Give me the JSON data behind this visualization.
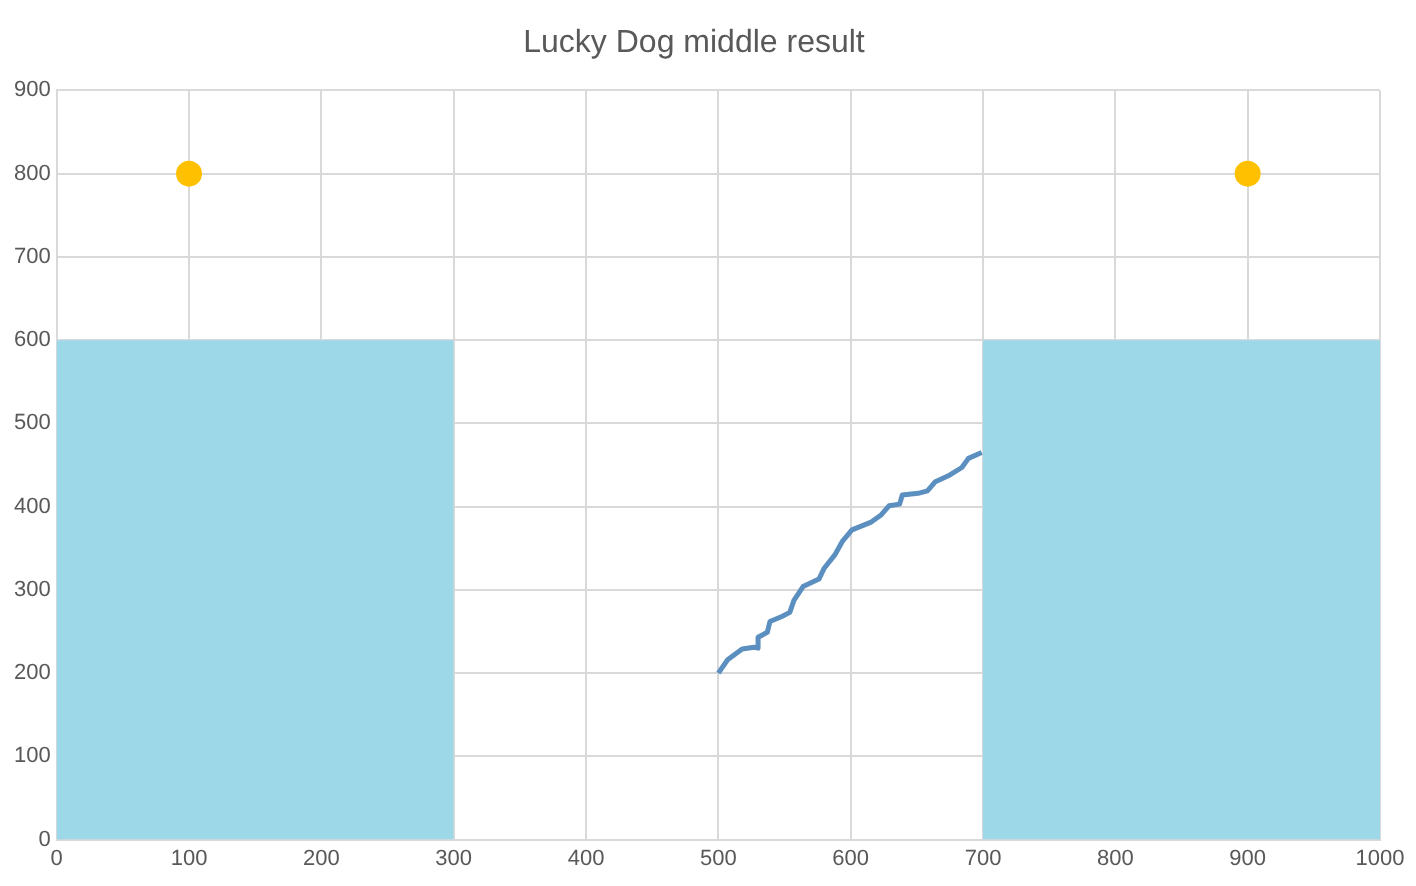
{
  "chart_data": {
    "type": "scatter",
    "title": "Lucky Dog middle result",
    "xlim": [
      0,
      1000
    ],
    "xticks": [
      0,
      100,
      200,
      300,
      400,
      500,
      600,
      700,
      800,
      900,
      1000
    ],
    "ylim": [
      0,
      900
    ],
    "yticks": [
      0,
      100,
      200,
      300,
      400,
      500,
      600,
      700,
      800,
      900
    ],
    "grid": true,
    "legend": false,
    "series": [
      {
        "type": "area",
        "color": "#9dd8e8",
        "x": [
          0,
          300
        ],
        "values": [
          600,
          600
        ]
      },
      {
        "type": "area",
        "color": "#9dd8e8",
        "x": [
          700,
          1000
        ],
        "values": [
          600,
          600
        ]
      },
      {
        "type": "line",
        "color": "#5b8fc0",
        "line_style": "solid",
        "marker": "none",
        "x": [
          500,
          507,
          518,
          527,
          530,
          530,
          537,
          539,
          548,
          554,
          557,
          564,
          576,
          580,
          588,
          594,
          601,
          615,
          623,
          629,
          637,
          639,
          651,
          658,
          664,
          675,
          684,
          689,
          699
        ],
        "values": [
          200,
          216,
          229,
          231,
          230,
          243,
          249,
          262,
          268,
          273,
          287,
          304,
          313,
          326,
          342,
          359,
          372,
          381,
          390,
          401,
          403,
          414,
          416,
          419,
          430,
          438,
          447,
          458,
          465
        ]
      },
      {
        "type": "scatter",
        "color": "#ffc000",
        "marker": "circle",
        "x": [
          100,
          900
        ],
        "values": [
          800,
          800
        ]
      }
    ]
  }
}
